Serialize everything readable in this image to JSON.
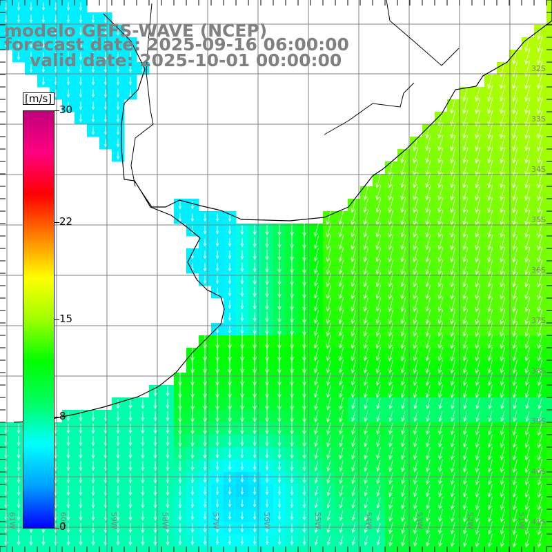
{
  "title": {
    "line1": "modelo GEFS-WAVE (NCEP)",
    "line2": "forecast date: 2025-09-16 06:00:00",
    "line3": "valid date: 2025-10-01 00:00:00"
  },
  "colorbar": {
    "unit": "[m/s]",
    "min": 0,
    "max": 30,
    "ticks": [
      {
        "value": 30,
        "label": "30"
      },
      {
        "value": 22,
        "label": "22"
      },
      {
        "value": 15,
        "label": "15"
      },
      {
        "value": 8,
        "label": "8"
      },
      {
        "value": 0,
        "label": "0"
      }
    ],
    "colors": [
      "#0000ff",
      "#00a0ff",
      "#00ffff",
      "#00ff60",
      "#00ff00",
      "#a0ff00",
      "#ffff00",
      "#ff8000",
      "#ff0000",
      "#ff0080",
      "#c0007c"
    ]
  },
  "map": {
    "lat_labels": [
      "32S",
      "33S",
      "34S",
      "35S",
      "36S",
      "37S",
      "38S",
      "39S",
      "40S",
      "41S"
    ],
    "lon_labels": [
      "61W",
      "60W",
      "59W",
      "58W",
      "57W",
      "56W",
      "55W",
      "54W",
      "53W",
      "52W",
      "51W"
    ],
    "colors": {
      "land": "#ffffff",
      "grid": "#808080",
      "coast": "#000000",
      "arrow": "#ffffff",
      "title": "#808080"
    },
    "wind_direction": "from north-northeast (arrows point south-southwest)"
  }
}
